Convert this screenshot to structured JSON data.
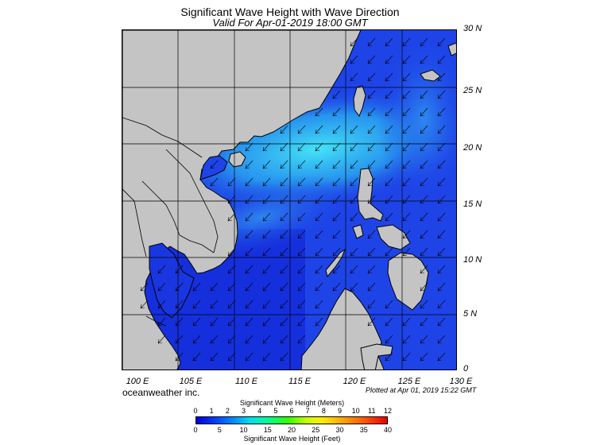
{
  "title": "Significant Wave Height with Wave Direction",
  "subtitle": "Valid For Apr-01-2019 18:00 GMT",
  "latitude_labels": [
    "30 N",
    "25 N",
    "20 N",
    "15 N",
    "10 N",
    "5 N",
    "0"
  ],
  "longitude_labels": [
    "100 E",
    "105 E",
    "110 E",
    "115 E",
    "120 E",
    "125 E",
    "130 E"
  ],
  "credit": "oceanweather inc.",
  "plotted": "Plotted at Apr 01, 2019 15:22 GMT",
  "colorbar": {
    "meters_title": "Significant Wave Height (Meters)",
    "meters_ticks": [
      "0",
      "1",
      "2",
      "3",
      "4",
      "5",
      "6",
      "7",
      "8",
      "9",
      "10",
      "11",
      "12"
    ],
    "feet_title": "Significant Wave Height (Feet)",
    "feet_ticks": [
      "0",
      "5",
      "10",
      "15",
      "20",
      "25",
      "30",
      "35",
      "40"
    ],
    "colors": [
      "#0000d8",
      "#0040ff",
      "#0090ff",
      "#00ddee",
      "#00ff90",
      "#30ff00",
      "#c8ff00",
      "#ffee00",
      "#ffaa00",
      "#ff5a00",
      "#e80000"
    ]
  },
  "map": {
    "land_color": "#c4c4c4",
    "sea_low_color": "#1c3ee6",
    "sea_high_color": "#30d0f2",
    "wave_direction": "from northeast to southwest",
    "domain": {
      "lon_min": 100,
      "lon_max": 130,
      "lat_min": 0,
      "lat_max": 30
    }
  }
}
